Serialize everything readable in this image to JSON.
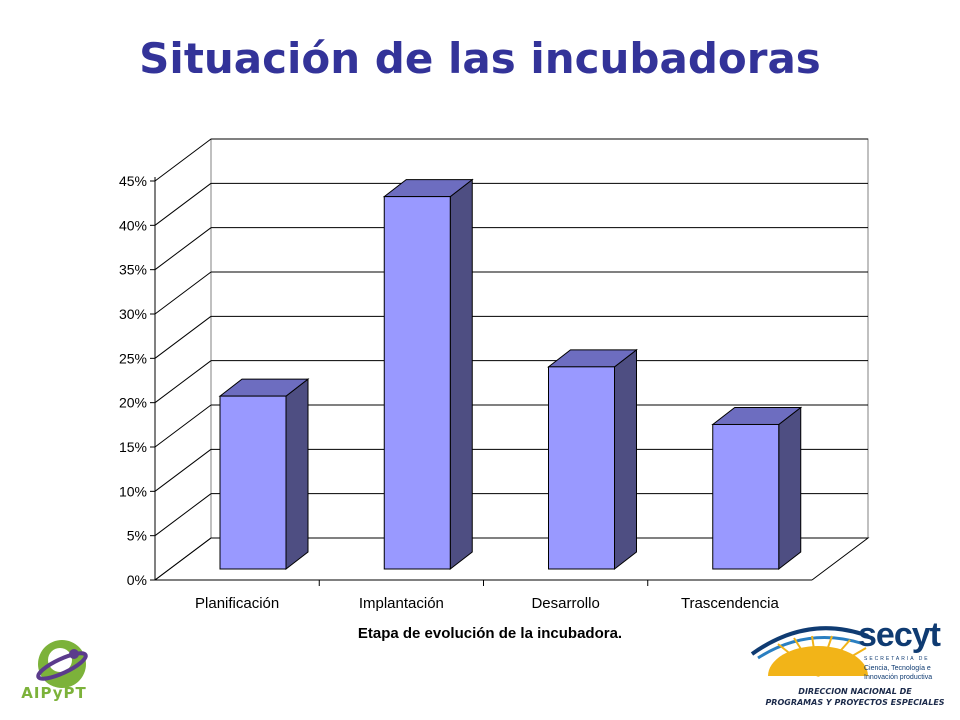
{
  "slide": {
    "title": "Situación de las incubadoras"
  },
  "logos": {
    "left_text": "AIPyPT",
    "right_word": "secyt",
    "right_tagline": "SECRETARIA DE",
    "right_sub_1": "Ciencia, Tecnología e",
    "right_sub_2": "Innovación productiva",
    "right_line_1": "DIRECCION NACIONAL DE",
    "right_line_2": "PROGRAMAS Y PROYECTOS ESPECIALES"
  },
  "colors": {
    "title": "#333399",
    "bar_front": "#9999ff",
    "bar_side": "#4e4e82",
    "bar_top": "#6d6dc0",
    "grid": "#000000"
  },
  "chart_data": {
    "type": "bar",
    "style": "3d-column",
    "title": "",
    "xlabel": "Etapa de evolución de la incubadora.",
    "ylabel": "",
    "categories": [
      "Planificación",
      "Implantación",
      "Desarrollo",
      "Trascendencia"
    ],
    "values": [
      0.195,
      0.42,
      0.228,
      0.163
    ],
    "ylim": [
      0,
      0.45
    ],
    "yticks": [
      "0%",
      "5%",
      "10%",
      "15%",
      "20%",
      "25%",
      "30%",
      "35%",
      "40%",
      "45%"
    ],
    "grid": true,
    "legend": "none"
  }
}
